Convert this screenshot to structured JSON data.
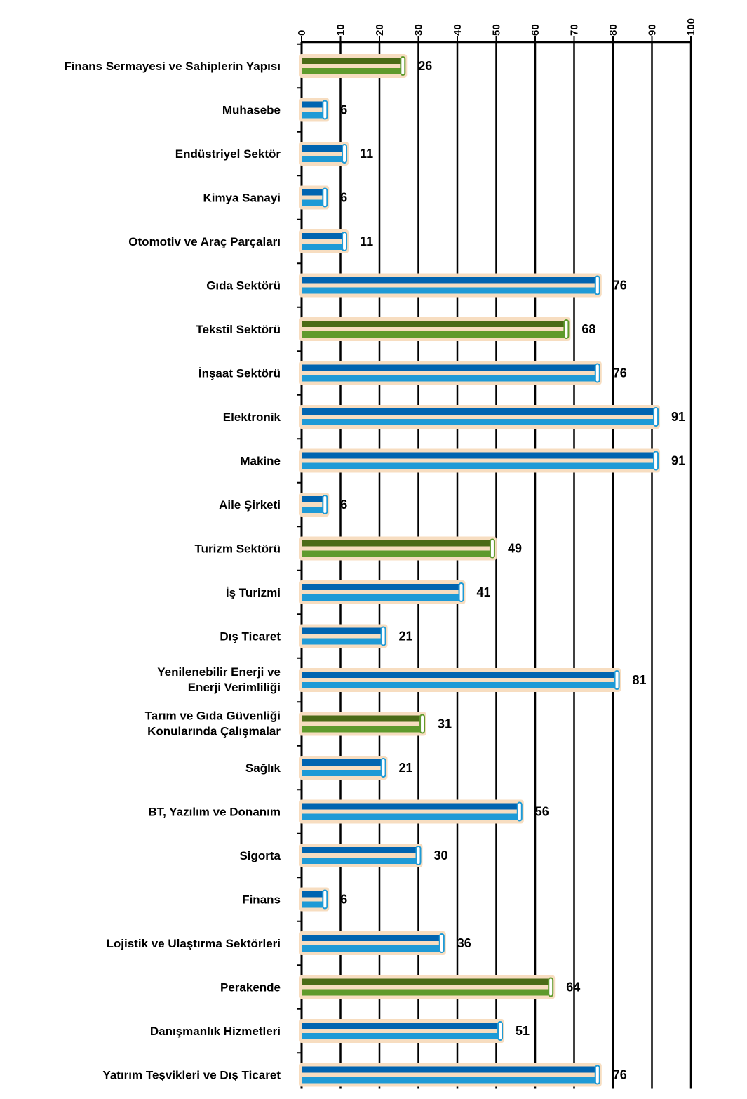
{
  "chart_data": {
    "type": "bar",
    "orientation": "horizontal",
    "title": "",
    "side_label": "",
    "xlabel": "",
    "ylabel": "",
    "xlim": [
      0,
      100
    ],
    "x_ticks": [
      0,
      10,
      20,
      30,
      40,
      50,
      60,
      70,
      80,
      90,
      100
    ],
    "grid": true,
    "legend": "none",
    "categories": [
      "Finans Sermayesi ve Sahiplerin Yapısı",
      "Muhasebe",
      "Endüstriyel Sektör",
      "Kimya Sanayi",
      "Otomotiv ve Araç Parçaları",
      "Gıda Sektörü",
      "Tekstil Sektörü",
      "İnşaat Sektörü",
      "Elektronik",
      "Makine",
      "Aile Şirketi",
      "Turizm Sektörü",
      "İş Turizmi",
      "Dış Ticaret",
      "Yenilenebilir Enerji ve Enerji Verimliliği",
      "Tarım ve Gıda Güvenliği Konularında Çalışmalar",
      "Sağlık",
      "BT, Yazılım ve Donanım",
      "Sigorta",
      "Finans",
      "Lojistik ve Ulaştırma Sektörleri",
      "Perakende",
      "Danışmanlık Hizmetleri",
      "Yatırım Teşvikleri ve Dış Ticaret"
    ],
    "values": [
      26,
      6,
      11,
      6,
      11,
      76,
      68,
      76,
      91,
      91,
      6,
      49,
      41,
      21,
      81,
      31,
      21,
      56,
      30,
      6,
      36,
      64,
      51,
      76
    ],
    "value_labels": [
      "26",
      "6",
      "11",
      "6",
      "11",
      "76",
      "68",
      "76",
      "91",
      "91",
      "6",
      "49",
      "41",
      "21",
      "81",
      "31",
      "21",
      "56",
      "30",
      "6",
      "36",
      "64",
      "51",
      "76"
    ],
    "bar_colors": [
      "green",
      "blue",
      "blue",
      "blue",
      "blue",
      "blue",
      "green",
      "blue",
      "blue",
      "blue",
      "blue",
      "green",
      "blue",
      "blue",
      "blue",
      "green",
      "blue",
      "blue",
      "blue",
      "blue",
      "blue",
      "green",
      "blue",
      "blue"
    ],
    "palette": {
      "blue_dark": "#0064b0",
      "blue_light": "#1e9ad6",
      "green_dark": "#4b6b17",
      "green_light": "#5f9a2c",
      "halo": "#f7ddc0",
      "axis": "#000000"
    }
  }
}
